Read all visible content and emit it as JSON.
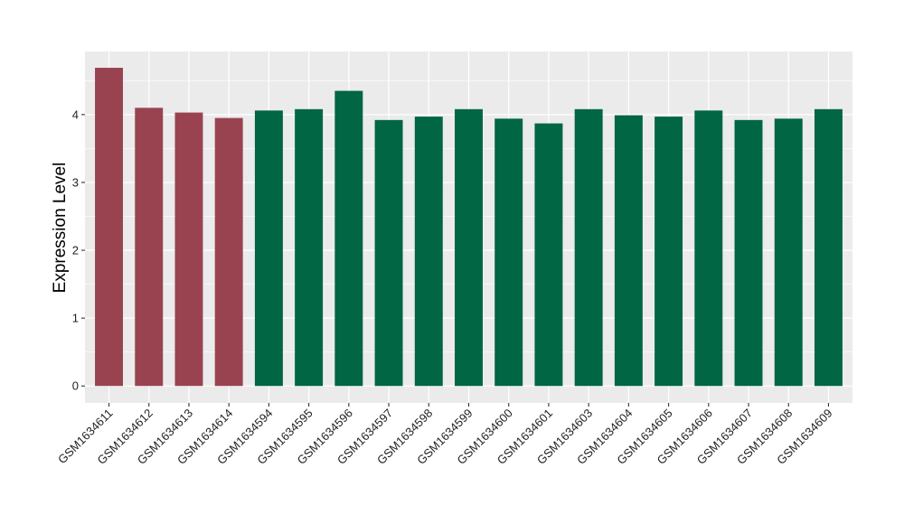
{
  "chart_data": {
    "type": "bar",
    "ylabel": "Expression Level",
    "xlabel": "",
    "ylim": [
      -0.25,
      4.93
    ],
    "yticks": [
      0,
      1,
      2,
      3,
      4
    ],
    "grid": true,
    "categories": [
      "GSM1634611",
      "GSM1634612",
      "GSM1634613",
      "GSM1634614",
      "GSM1634594",
      "GSM1634595",
      "GSM1634596",
      "GSM1634597",
      "GSM1634598",
      "GSM1634599",
      "GSM1634600",
      "GSM1634601",
      "GSM1634603",
      "GSM1634604",
      "GSM1634605",
      "GSM1634606",
      "GSM1634607",
      "GSM1634608",
      "GSM1634609"
    ],
    "values": [
      4.69,
      4.1,
      4.03,
      3.95,
      4.06,
      4.08,
      4.35,
      3.92,
      3.97,
      4.08,
      3.94,
      3.87,
      4.08,
      3.99,
      3.97,
      4.06,
      3.92,
      3.94,
      4.08
    ],
    "bar_colors": [
      "#9a4350",
      "#9a4350",
      "#9a4350",
      "#9a4350",
      "#006643",
      "#006643",
      "#006643",
      "#006643",
      "#006643",
      "#006643",
      "#006643",
      "#006643",
      "#006643",
      "#006643",
      "#006643",
      "#006643",
      "#006643",
      "#006643",
      "#006643"
    ],
    "panel_background": "#ebebeb",
    "grid_color": "#ffffff"
  }
}
